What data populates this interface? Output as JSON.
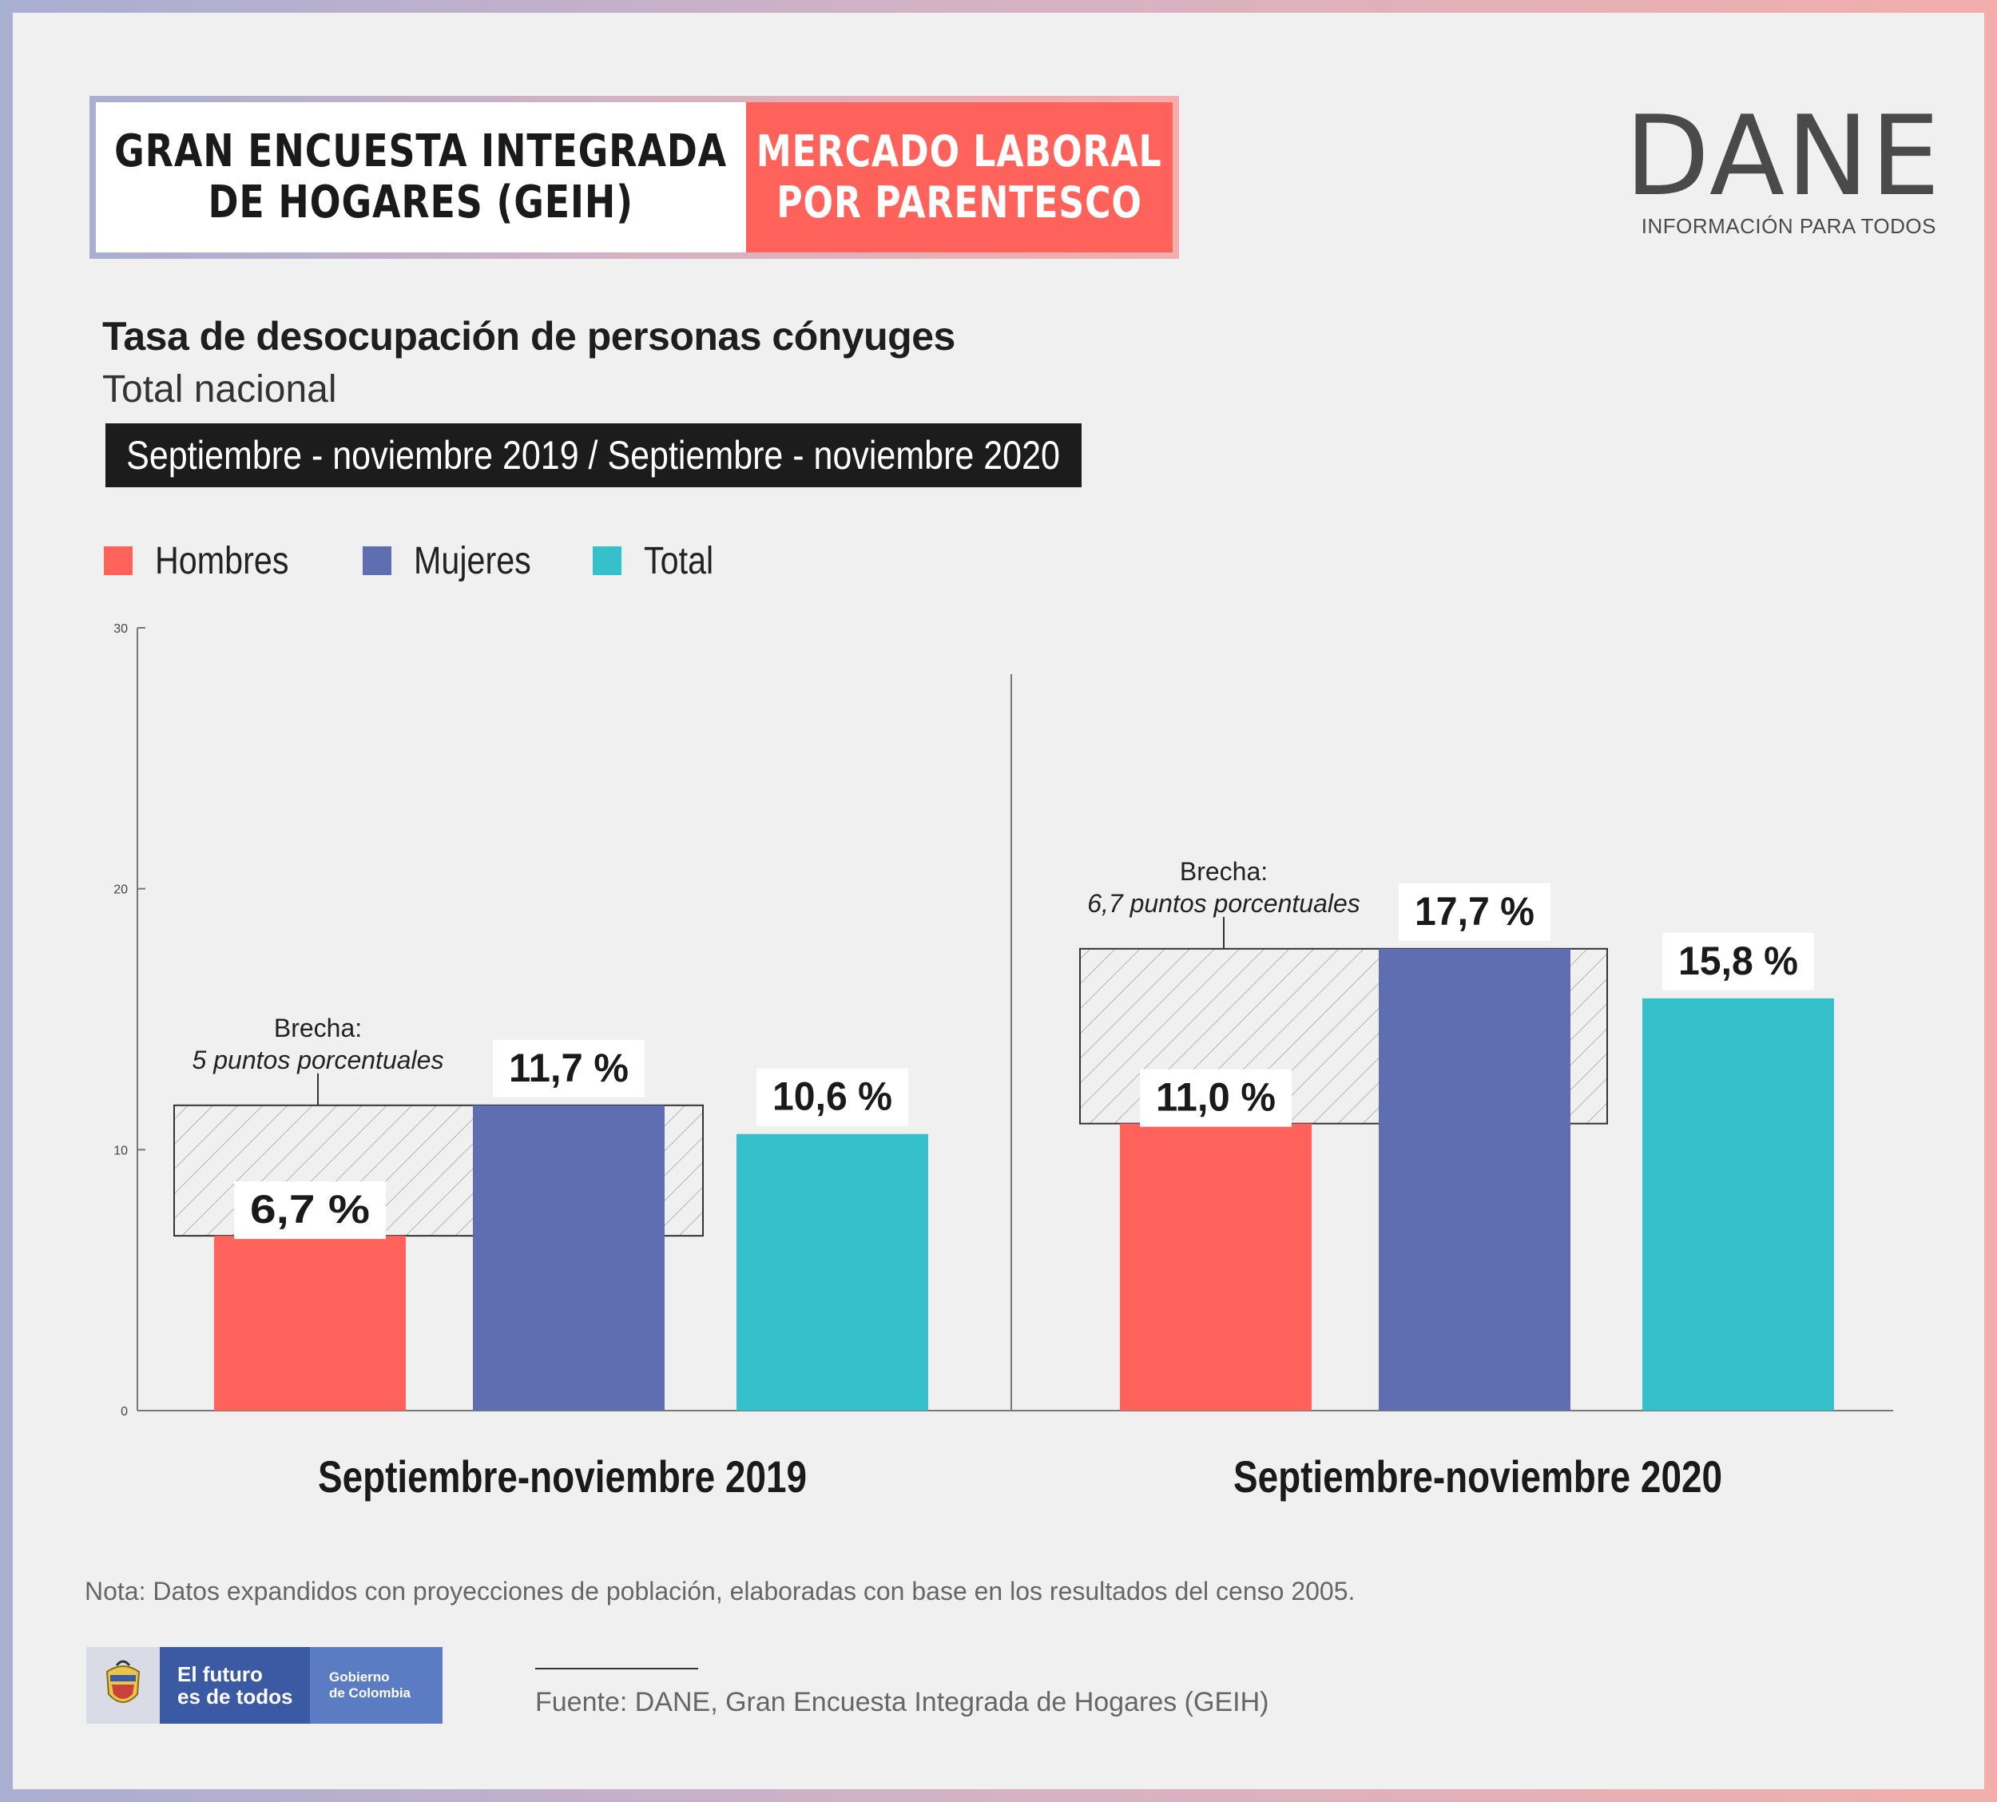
{
  "header": {
    "left_line1": "GRAN ENCUESTA INTEGRADA",
    "left_line2": "DE HOGARES (GEIH)",
    "right_line1": "MERCADO LABORAL",
    "right_line2": "POR PARENTESCO"
  },
  "logo": {
    "word": "DANE",
    "tagline": "INFORMACIÓN PARA TODOS"
  },
  "title": "Tasa de desocupación de personas cónyuges",
  "subtitle": "Total nacional",
  "period": "Septiembre - noviembre 2019 / Septiembre - noviembre 2020",
  "colors": {
    "hombres": "#ff625a",
    "mujeres": "#5f6eb1",
    "total": "#36c0cb",
    "background": "#f0f0f0"
  },
  "chart_data": {
    "type": "bar",
    "categories": [
      "Septiembre-noviembre 2019",
      "Septiembre-noviembre 2020"
    ],
    "series": [
      {
        "name": "Hombres",
        "values": [
          6.7,
          11.0
        ],
        "labels": [
          "6,7 %",
          "11,0 %"
        ]
      },
      {
        "name": "Mujeres",
        "values": [
          11.7,
          17.7
        ],
        "labels": [
          "11,7 %",
          "17,7 %"
        ]
      },
      {
        "name": "Total",
        "values": [
          10.6,
          15.8
        ],
        "labels": [
          "10,6 %",
          "15,8 %"
        ]
      }
    ],
    "ylim": [
      0,
      30
    ],
    "yticks": [
      "0",
      "10",
      "20",
      "30"
    ],
    "legend_position": "top-left",
    "annotations": [
      {
        "title": "Brecha:",
        "text": "5 puntos porcentuales",
        "from": 6.7,
        "to": 11.7
      },
      {
        "title": "Brecha:",
        "text": "6,7  puntos porcentuales",
        "from": 11.0,
        "to": 17.7
      }
    ]
  },
  "footer": {
    "nota": "Nota: Datos expandidos con proyecciones de población, elaboradas con base en los resultados del censo 2005.",
    "fuente": "Fuente: DANE, Gran Encuesta Integrada de Hogares (GEIH)",
    "gov_line1": "El futuro",
    "gov_line2": "es de todos",
    "gov_right1": "Gobierno",
    "gov_right2": "de Colombia"
  }
}
